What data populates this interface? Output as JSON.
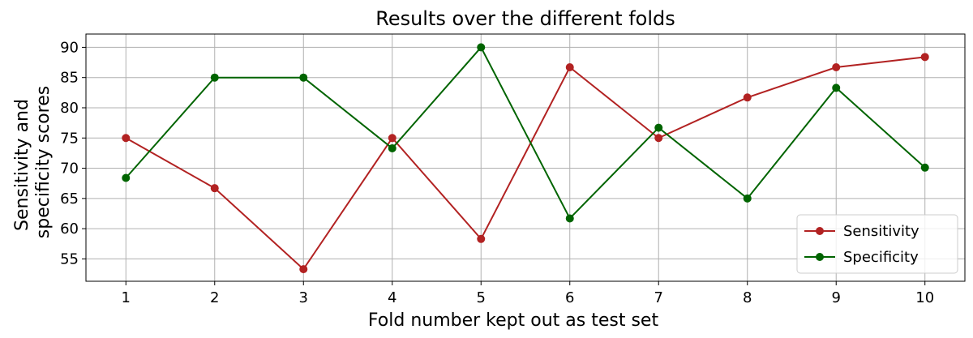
{
  "chart_data": {
    "type": "line",
    "title": "Results over the different folds",
    "xlabel": "Fold number kept out as test set",
    "ylabel_lines": [
      "Sensitivity and",
      "specificity scores"
    ],
    "x": [
      1,
      2,
      3,
      4,
      5,
      6,
      7,
      8,
      9,
      10
    ],
    "xlim": [
      0.55,
      10.45
    ],
    "ylim": [
      51.3,
      92.2
    ],
    "xticks": [
      1,
      2,
      3,
      4,
      5,
      6,
      7,
      8,
      9,
      10
    ],
    "yticks": [
      55,
      60,
      65,
      70,
      75,
      80,
      85,
      90
    ],
    "grid": true,
    "legend_position": "bottom-right",
    "series": [
      {
        "name": "Sensitivity",
        "color": "#b22222",
        "values": [
          75.0,
          66.7,
          53.3,
          75.0,
          58.3,
          86.7,
          75.0,
          81.7,
          86.7,
          88.4
        ]
      },
      {
        "name": "Specificity",
        "color": "#006400",
        "values": [
          68.4,
          85.0,
          85.0,
          73.3,
          90.0,
          61.7,
          76.7,
          65.0,
          83.3,
          70.1
        ]
      }
    ]
  }
}
